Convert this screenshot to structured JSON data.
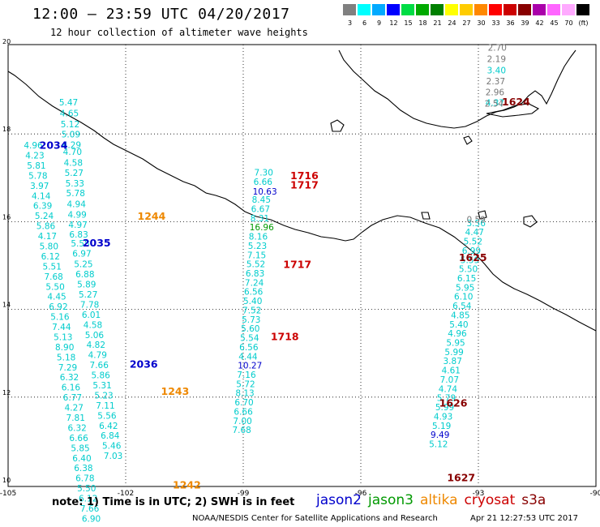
{
  "header": {
    "title": "12:00 – 23:59 UTC 04/20/2017",
    "subtitle": "12 hour collection of altimeter wave heights"
  },
  "colorbar": {
    "colors": [
      "#808080",
      "#00ffff",
      "#00aaff",
      "#0000ff",
      "#00dd44",
      "#00aa00",
      "#008000",
      "#ffff00",
      "#ffcc00",
      "#ff8800",
      "#ff0000",
      "#cc0000",
      "#880000",
      "#aa00aa",
      "#ff66ff",
      "#ffaaff",
      "#000000"
    ],
    "labels": [
      "3",
      "6",
      "9",
      "12",
      "15",
      "18",
      "21",
      "24",
      "27",
      "30",
      "33",
      "36",
      "39",
      "42",
      "45",
      "70",
      "(ft)"
    ]
  },
  "axes": {
    "x_ticks": [
      "-105",
      "-102",
      "-99",
      "-96",
      "-93",
      "-90"
    ],
    "x_values": [
      -105,
      -102,
      -99,
      -96,
      -93,
      -90
    ],
    "y_ticks": [
      "20",
      "18",
      "16",
      "14",
      "12",
      "10"
    ],
    "y_values": [
      20,
      18,
      16,
      14,
      12,
      10
    ]
  },
  "satellite_colors": {
    "jason2": "#0000cc",
    "jason3": "#009900",
    "altika": "#ee8800",
    "cryosat": "#cc0000",
    "s3a": "#880000",
    "obs": "#00cccc",
    "gray": "#777777"
  },
  "tracks": [
    {
      "name": "track-a-cyan",
      "color": "#00cccc",
      "points": [
        [
          -103.7,
          18.65,
          "5.47"
        ],
        [
          -103.68,
          18.4,
          "4.65"
        ],
        [
          -103.66,
          18.15,
          "5.12"
        ],
        [
          -103.64,
          17.92,
          "5.09"
        ],
        [
          -103.62,
          17.68,
          "4.29"
        ],
        [
          -103.6,
          17.52,
          "4.70"
        ],
        [
          -103.58,
          17.27,
          "4.58"
        ],
        [
          -103.56,
          17.04,
          "5.27"
        ],
        [
          -103.54,
          16.8,
          "5.33"
        ],
        [
          -103.52,
          16.58,
          "5.78"
        ],
        [
          -103.5,
          16.33,
          "4.94"
        ],
        [
          -103.48,
          16.09,
          "4.99"
        ],
        [
          -103.46,
          15.86,
          "4.97"
        ],
        [
          -103.44,
          15.64,
          "6.83"
        ],
        [
          -103.4,
          15.43,
          "5.58"
        ],
        [
          -103.36,
          15.2,
          "6.97"
        ],
        [
          -103.32,
          14.96,
          "5.25"
        ],
        [
          -103.28,
          14.73,
          "6.88"
        ],
        [
          -103.24,
          14.5,
          "5.89"
        ],
        [
          -103.2,
          14.27,
          "5.27"
        ],
        [
          -103.16,
          14.04,
          "7.78"
        ],
        [
          -103.12,
          13.81,
          "6.01"
        ],
        [
          -103.08,
          13.58,
          "4.58"
        ],
        [
          -103.04,
          13.35,
          "5.06"
        ],
        [
          -103.0,
          13.12,
          "4.82"
        ],
        [
          -102.96,
          12.89,
          "4.79"
        ],
        [
          -102.92,
          12.66,
          "7.66"
        ],
        [
          -102.88,
          12.43,
          "5.86"
        ],
        [
          -102.84,
          12.2,
          "5.31"
        ],
        [
          -102.8,
          11.97,
          "5.23"
        ],
        [
          -102.76,
          11.74,
          "7.11"
        ],
        [
          -102.72,
          11.51,
          "5.56"
        ],
        [
          -102.68,
          11.28,
          "6.42"
        ],
        [
          -102.64,
          11.05,
          "6.84"
        ],
        [
          -102.6,
          10.82,
          "5.46"
        ],
        [
          -102.56,
          10.59,
          "7.03"
        ]
      ]
    },
    {
      "name": "track-b-cyan",
      "color": "#00cccc",
      "points": [
        [
          -104.6,
          17.67,
          "4.96"
        ],
        [
          -104.56,
          17.44,
          "4.23"
        ],
        [
          -104.52,
          17.21,
          "5.81"
        ],
        [
          -104.48,
          16.98,
          "5.78"
        ],
        [
          -104.44,
          16.75,
          "3.97"
        ],
        [
          -104.4,
          16.52,
          "4.14"
        ],
        [
          -104.36,
          16.29,
          "6.39"
        ],
        [
          -104.32,
          16.06,
          "5.24"
        ],
        [
          -104.28,
          15.83,
          "5.86"
        ],
        [
          -104.24,
          15.6,
          "4.17"
        ],
        [
          -104.2,
          15.37,
          "5.80"
        ],
        [
          -104.16,
          15.14,
          "6.12"
        ],
        [
          -104.12,
          14.91,
          "5.51"
        ],
        [
          -104.08,
          14.68,
          "7.68"
        ],
        [
          -104.04,
          14.45,
          "5.50"
        ],
        [
          -104.0,
          14.22,
          "4.45"
        ],
        [
          -103.96,
          13.99,
          "6.92"
        ],
        [
          -103.92,
          13.76,
          "5.16"
        ],
        [
          -103.88,
          13.53,
          "7.44"
        ],
        [
          -103.84,
          13.3,
          "5.13"
        ],
        [
          -103.8,
          13.07,
          "8.90"
        ],
        [
          -103.76,
          12.84,
          "5.18"
        ],
        [
          -103.72,
          12.61,
          "7.29"
        ],
        [
          -103.68,
          12.38,
          "6.32"
        ],
        [
          -103.64,
          12.15,
          "6.16"
        ],
        [
          -103.6,
          11.92,
          "6.77"
        ],
        [
          -103.56,
          11.69,
          "4.27"
        ],
        [
          -103.52,
          11.46,
          "7.81"
        ],
        [
          -103.48,
          11.23,
          "6.32"
        ],
        [
          -103.44,
          11.0,
          "6.66"
        ],
        [
          -103.4,
          10.77,
          "5.85"
        ],
        [
          -103.36,
          10.54,
          "6.40"
        ],
        [
          -103.32,
          10.31,
          "6.38"
        ],
        [
          -103.28,
          10.08,
          "6.78"
        ],
        [
          -103.24,
          9.85,
          "5.50"
        ],
        [
          -103.2,
          9.62,
          "6.12"
        ],
        [
          -103.16,
          9.39,
          "7.66"
        ],
        [
          -103.12,
          9.16,
          "6.90"
        ]
      ]
    },
    {
      "name": "track-c-cyan",
      "color": "#00cccc",
      "points": [
        [
          -98.72,
          17.05,
          "7.30"
        ],
        [
          -98.74,
          16.84,
          "6.66"
        ],
        [
          -98.78,
          16.43,
          "8.45"
        ],
        [
          -98.8,
          16.22,
          "6.67"
        ],
        [
          -98.82,
          16.01,
          "8.31"
        ],
        [
          -98.86,
          15.59,
          "8.16"
        ],
        [
          -98.88,
          15.38,
          "5.23"
        ],
        [
          -98.9,
          15.17,
          "7.15"
        ],
        [
          -98.92,
          14.96,
          "5.52"
        ],
        [
          -98.94,
          14.75,
          "6.83"
        ],
        [
          -98.96,
          14.54,
          "7.24"
        ],
        [
          -98.98,
          14.33,
          "6.56"
        ],
        [
          -99.0,
          14.12,
          "5.40"
        ],
        [
          -99.02,
          13.91,
          "7.52"
        ],
        [
          -99.04,
          13.7,
          "5.73"
        ],
        [
          -99.06,
          13.49,
          "5.60"
        ],
        [
          -99.08,
          13.28,
          "5.54"
        ],
        [
          -99.1,
          13.07,
          "6.56"
        ],
        [
          -99.12,
          12.86,
          "4.44"
        ],
        [
          -99.16,
          12.44,
          "7.16"
        ],
        [
          -99.18,
          12.23,
          "5.72"
        ],
        [
          -99.2,
          12.02,
          "8.13"
        ],
        [
          -99.22,
          11.81,
          "6.70"
        ],
        [
          -99.24,
          11.6,
          "6.66"
        ],
        [
          -99.26,
          11.39,
          "7.00"
        ],
        [
          -99.28,
          11.18,
          "7.68"
        ]
      ]
    },
    {
      "name": "track-d-cyan",
      "color": "#00cccc",
      "points": [
        [
          -93.3,
          15.9,
          "3.56"
        ],
        [
          -93.34,
          15.69,
          "4.47"
        ],
        [
          -93.38,
          15.48,
          "5.52"
        ],
        [
          -93.42,
          15.27,
          "6.99"
        ],
        [
          -93.46,
          15.06,
          "5.59"
        ],
        [
          -93.5,
          14.85,
          "5.50"
        ],
        [
          -93.54,
          14.64,
          "6.15"
        ],
        [
          -93.58,
          14.43,
          "5.95"
        ],
        [
          -93.62,
          14.22,
          "6.10"
        ],
        [
          -93.66,
          14.01,
          "6.54"
        ],
        [
          -93.7,
          13.8,
          "4.85"
        ],
        [
          -93.74,
          13.59,
          "5.40"
        ],
        [
          -93.78,
          13.38,
          "4.96"
        ],
        [
          -93.82,
          13.17,
          "5.95"
        ],
        [
          -93.86,
          12.96,
          "5.99"
        ],
        [
          -93.9,
          12.75,
          "3.87"
        ],
        [
          -93.94,
          12.54,
          "4.61"
        ],
        [
          -93.98,
          12.33,
          "7.07"
        ],
        [
          -94.02,
          12.12,
          "4.74"
        ],
        [
          -94.06,
          11.91,
          "5.79"
        ],
        [
          -94.1,
          11.7,
          "5.99"
        ],
        [
          -94.14,
          11.49,
          "4.93"
        ],
        [
          -94.18,
          11.28,
          "5.19"
        ],
        [
          -94.26,
          10.86,
          "5.12"
        ]
      ]
    },
    {
      "name": "track-e-cyan",
      "color": "#00cccc",
      "points": [
        [
          -92.78,
          19.38,
          "3.40"
        ],
        [
          -92.82,
          18.64,
          "4.37"
        ]
      ]
    },
    {
      "name": "track-e-gray",
      "color": "#777777",
      "points": [
        [
          -92.76,
          19.9,
          "2.70"
        ],
        [
          -92.78,
          19.64,
          "2.19"
        ],
        [
          -92.8,
          19.13,
          "2.37"
        ],
        [
          -92.82,
          18.88,
          "2.96"
        ],
        [
          -92.84,
          18.62,
          "2.54"
        ],
        [
          -93.3,
          15.98,
          "0.59"
        ]
      ]
    },
    {
      "name": "track-c-blue",
      "color": "#0000cc",
      "points": [
        [
          -98.76,
          16.62,
          "10.63"
        ],
        [
          -99.14,
          12.65,
          "10.27"
        ],
        [
          -94.22,
          11.07,
          "9.49"
        ]
      ]
    },
    {
      "name": "track-c-green",
      "color": "#009900",
      "points": [
        [
          -98.84,
          15.8,
          "16.96"
        ]
      ]
    }
  ],
  "time_labels": [
    {
      "text": "2034",
      "lon": -104.2,
      "lat": 17.66,
      "color": "#0000cc"
    },
    {
      "text": "2035",
      "lon": -103.1,
      "lat": 15.43,
      "color": "#0000cc"
    },
    {
      "text": "2036",
      "lon": -101.9,
      "lat": 12.67,
      "color": "#0000cc"
    },
    {
      "text": "1244",
      "lon": -101.7,
      "lat": 16.04,
      "color": "#ee8800"
    },
    {
      "text": "1243",
      "lon": -101.1,
      "lat": 12.05,
      "color": "#ee8800"
    },
    {
      "text": "1242",
      "lon": -100.8,
      "lat": 9.92,
      "color": "#ee8800"
    },
    {
      "text": "1716",
      "lon": -97.8,
      "lat": 16.97,
      "color": "#cc0000"
    },
    {
      "text": "1717",
      "lon": -97.8,
      "lat": 16.76,
      "color": "#cc0000"
    },
    {
      "text": "1717",
      "lon": -97.98,
      "lat": 14.94,
      "color": "#cc0000"
    },
    {
      "text": "1718",
      "lon": -98.3,
      "lat": 13.3,
      "color": "#cc0000"
    },
    {
      "text": "1624",
      "lon": -92.4,
      "lat": 18.65,
      "color": "#880000"
    },
    {
      "text": "1625",
      "lon": -93.5,
      "lat": 15.1,
      "color": "#880000"
    },
    {
      "text": "1626",
      "lon": -94.0,
      "lat": 11.78,
      "color": "#880000"
    },
    {
      "text": "1627",
      "lon": -93.8,
      "lat": 10.08,
      "color": "#880000"
    }
  ],
  "footer": {
    "note": "note: 1) Time is in UTC; 2) SWH is in feet",
    "legend": [
      {
        "label": "jason2",
        "color": "#0000cc"
      },
      {
        "label": "jason3",
        "color": "#009900"
      },
      {
        "label": "altika",
        "color": "#ee8800"
      },
      {
        "label": "cryosat",
        "color": "#cc0000"
      },
      {
        "label": "s3a",
        "color": "#880000"
      }
    ],
    "credit": "NOAA/NESDIS Center for Satellite Applications and Research",
    "timestamp": "Apr 21 12:27:53 UTC 2017"
  }
}
